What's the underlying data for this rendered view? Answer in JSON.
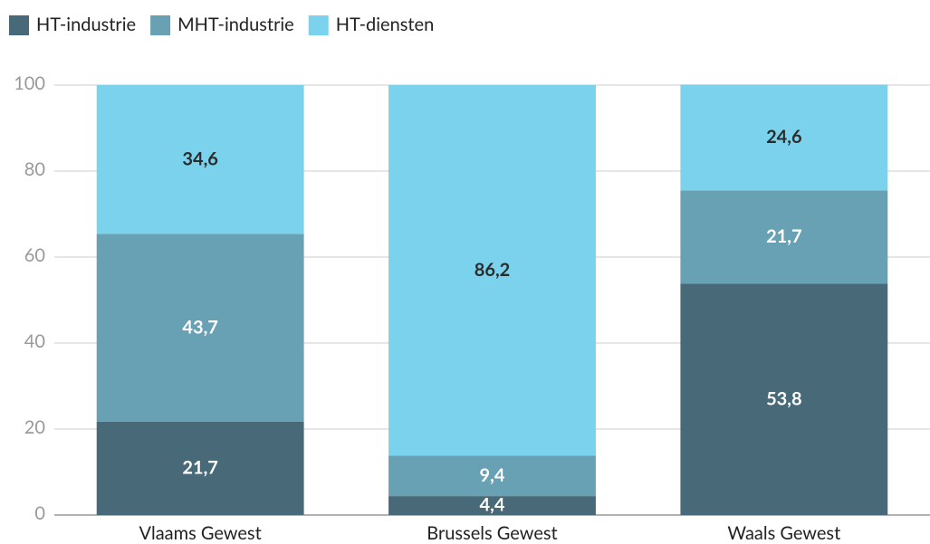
{
  "chart_data": {
    "type": "stacked_bar",
    "categories": [
      "Vlaams Gewest",
      "Brussels Gewest",
      "Waals Gewest"
    ],
    "series": [
      {
        "name": "HT-industrie",
        "color": "#486a78",
        "label_color": "#ffffff",
        "values": [
          21.7,
          4.4,
          53.8
        ],
        "value_labels": [
          "21,7",
          "4,4",
          "53,8"
        ]
      },
      {
        "name": "MHT-industrie",
        "color": "#68a0b4",
        "label_color": "#ffffff",
        "values": [
          43.7,
          9.4,
          21.7
        ],
        "value_labels": [
          "43,7",
          "9,4",
          "21,7"
        ]
      },
      {
        "name": "HT-diensten",
        "color": "#7ad2ec",
        "label_color": "#2b2b2b",
        "values": [
          34.6,
          86.2,
          24.6
        ],
        "value_labels": [
          "34,6",
          "86,2",
          "24,6"
        ]
      }
    ],
    "ylim": [
      0,
      100
    ],
    "yticks": [
      0,
      20,
      40,
      60,
      80,
      100
    ],
    "grid": true,
    "legend": "top-left"
  }
}
